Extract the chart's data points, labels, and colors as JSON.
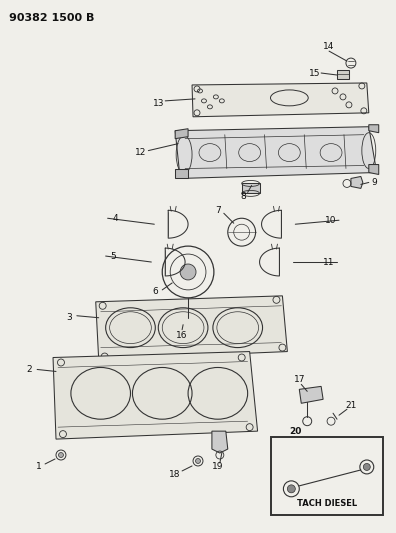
{
  "title": "90382 1500 B",
  "background_color": "#f0efea",
  "line_color": "#333333",
  "figsize": [
    3.96,
    5.33
  ],
  "dpi": 100,
  "header": "90382 1500 B",
  "box_text": "TACH DIESEL",
  "label_fs": 6.5,
  "lw": 0.75
}
